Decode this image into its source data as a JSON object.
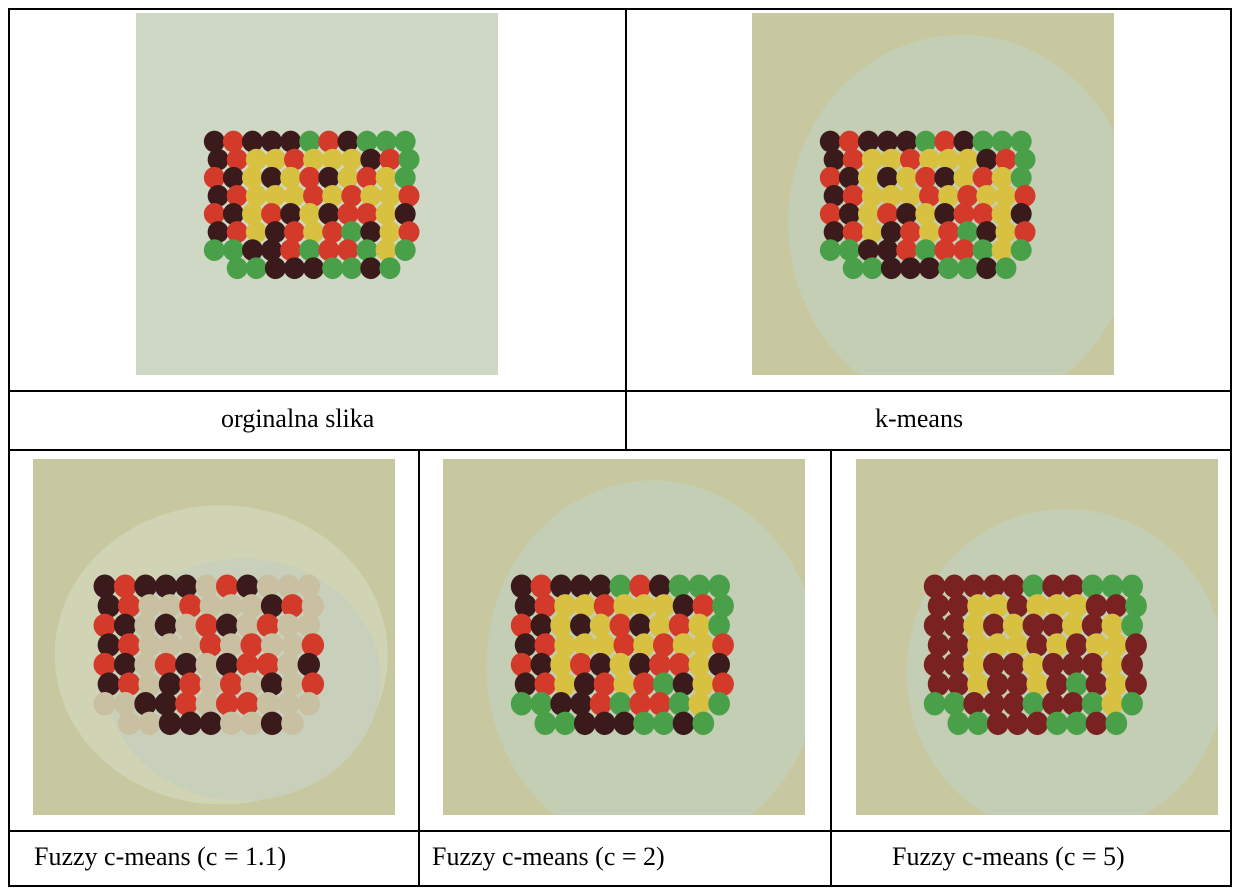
{
  "figure": {
    "top_row": [
      {
        "caption": "orginalna slika"
      },
      {
        "caption": "k-means"
      }
    ],
    "bottom_row": [
      {
        "caption": "Fuzzy c-means (c = 1.1)"
      },
      {
        "caption": "Fuzzy c-means (c = 2)"
      },
      {
        "caption": "Fuzzy c-means (c = 5)"
      }
    ]
  },
  "colors": {
    "bean_dark": "#3a1a1a",
    "bean_red": "#d43a2a",
    "bean_yellow": "#d8c040",
    "bean_green": "#4aa048",
    "bean_maroon": "#7a2222",
    "bean_beige": "#c8c0a0",
    "bg_original": "#d8dcc8",
    "bg_segmented_outer": "#c8c8a0",
    "bg_segmented_inner": "#c4ceb4"
  }
}
